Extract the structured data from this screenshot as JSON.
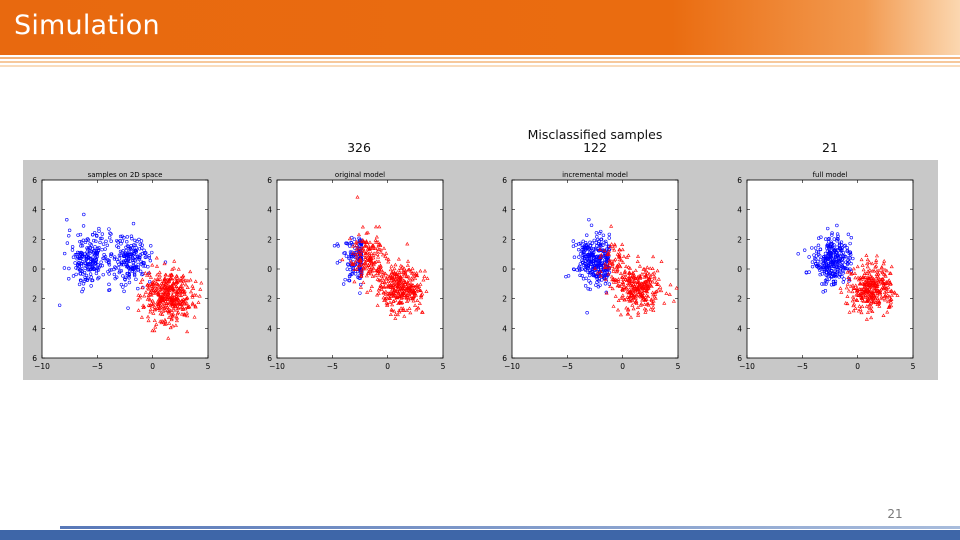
{
  "slide": {
    "title": "Simulation",
    "page_number": "21",
    "caption_heading": "Misclassified samples",
    "captions": [
      "326",
      "122",
      "21"
    ]
  },
  "colors": {
    "title_bar": "#E8690F",
    "class_a": "#0000FF",
    "class_b": "#FF0000",
    "figure_bg": "#C8C8C8",
    "footer": "#3E66A8"
  },
  "chart_data": [
    {
      "type": "scatter",
      "title": "samples on 2D space",
      "xlim": [
        -10,
        5
      ],
      "ylim": [
        -6,
        6
      ],
      "xticks": [
        -10,
        -5,
        0,
        5
      ],
      "yticks": [
        6,
        4,
        2,
        0,
        2,
        4,
        6
      ],
      "clusters": [
        {
          "class": "blue",
          "cx": -5.7,
          "cy": 0.7,
          "sx": 1.0,
          "sy": 0.9,
          "n": 220,
          "cut_max_x": null
        },
        {
          "class": "blue",
          "cx": -2.0,
          "cy": 0.6,
          "sx": 1.0,
          "sy": 0.8,
          "n": 200,
          "cut_max_x": null
        },
        {
          "class": "red",
          "cx": 1.4,
          "cy": -1.8,
          "sx": 1.1,
          "sy": 0.9,
          "n": 420,
          "cut_max_x": null
        }
      ]
    },
    {
      "type": "scatter",
      "title": "original model",
      "xlim": [
        -10,
        5
      ],
      "ylim": [
        -6,
        6
      ],
      "xticks": [
        -10,
        -5,
        0,
        5
      ],
      "yticks": [
        6,
        4,
        2,
        0,
        2,
        4,
        6
      ],
      "clusters": [
        {
          "class": "blue",
          "cx": -2.6,
          "cy": 0.6,
          "sx": 0.9,
          "sy": 0.8,
          "n": 140,
          "cut_max_x": -2.3
        },
        {
          "class": "red",
          "cx": -1.7,
          "cy": 0.7,
          "sx": 0.8,
          "sy": 0.8,
          "n": 170,
          "cut_max_x": null
        },
        {
          "class": "red",
          "cx": 1.2,
          "cy": -1.2,
          "sx": 1.0,
          "sy": 0.8,
          "n": 330,
          "cut_max_x": null
        }
      ]
    },
    {
      "type": "scatter",
      "title": "incremental model",
      "xlim": [
        -10,
        5
      ],
      "ylim": [
        -6,
        6
      ],
      "xticks": [
        -10,
        -5,
        0,
        5
      ],
      "yticks": [
        6,
        4,
        2,
        0,
        2,
        4,
        6
      ],
      "clusters": [
        {
          "class": "blue",
          "cx": -2.5,
          "cy": 0.6,
          "sx": 0.9,
          "sy": 0.8,
          "n": 320,
          "cut_max_x": -1.2
        },
        {
          "class": "red",
          "cx": -0.9,
          "cy": 0.6,
          "sx": 0.6,
          "sy": 0.8,
          "n": 60,
          "cut_max_x": null
        },
        {
          "class": "red",
          "cx": 1.3,
          "cy": -1.3,
          "sx": 1.0,
          "sy": 0.8,
          "n": 300,
          "cut_max_x": null
        }
      ]
    },
    {
      "type": "scatter",
      "title": "full model",
      "xlim": [
        -10,
        5
      ],
      "ylim": [
        -6,
        6
      ],
      "xticks": [
        -10,
        -5,
        0,
        5
      ],
      "yticks": [
        6,
        4,
        2,
        0,
        2,
        4,
        6
      ],
      "clusters": [
        {
          "class": "blue",
          "cx": -2.3,
          "cy": 0.6,
          "sx": 0.9,
          "sy": 0.8,
          "n": 300,
          "cut_max_x": null
        },
        {
          "class": "red",
          "cx": 1.3,
          "cy": -1.2,
          "sx": 1.0,
          "sy": 0.8,
          "n": 330,
          "cut_max_x": null
        }
      ]
    }
  ]
}
